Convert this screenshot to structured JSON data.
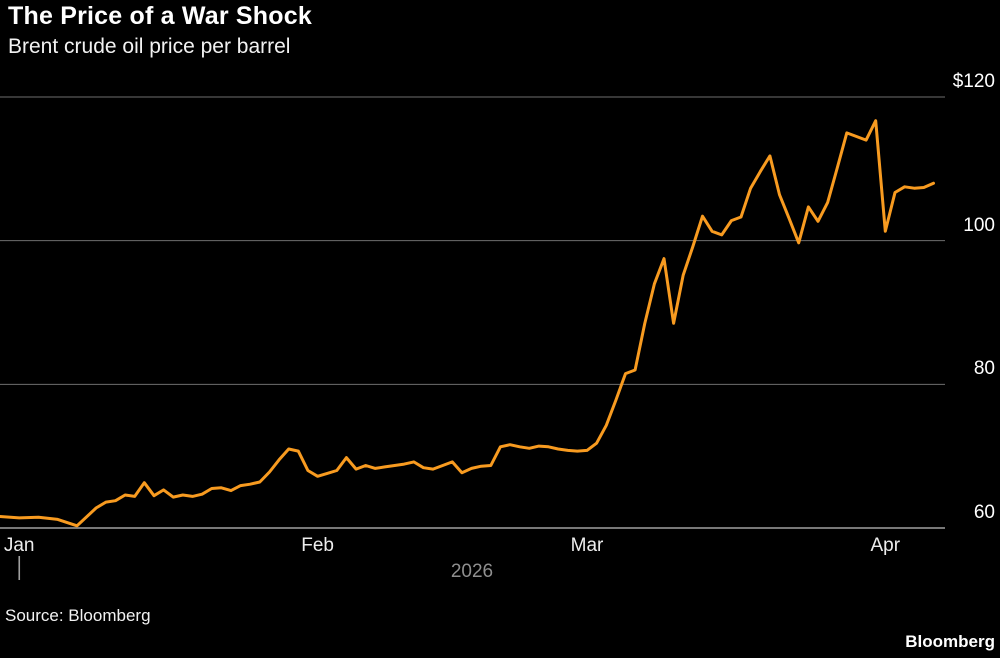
{
  "header": {
    "title": "The Price of a War Shock",
    "subtitle": "Brent crude oil price per barrel"
  },
  "footer": {
    "source": "Source: Bloomberg",
    "brand": "Bloomberg"
  },
  "chart_data": {
    "type": "line",
    "title": "The Price of a War Shock",
    "subtitle": "Brent crude oil price per barrel",
    "background": "#000000",
    "colors": {
      "line": "#F89B20",
      "grid": "#6e6e6e",
      "axis": "#a0a0a0"
    },
    "y_axis": {
      "side": "right",
      "range": [
        60,
        120
      ],
      "ticks": [
        60,
        80,
        100,
        120
      ],
      "tick_labels": [
        "60",
        "80",
        "100",
        "$120"
      ]
    },
    "x_axis": {
      "tick_labels": [
        "Jan",
        "Feb",
        "Mar",
        "Apr"
      ],
      "tick_days": [
        0,
        31,
        59,
        90
      ],
      "year_label": "2026",
      "range_days": [
        -2,
        96.2
      ]
    },
    "series": [
      {
        "name": "Brent crude oil price per barrel",
        "color": "#F89B20",
        "x_days": [
          -2,
          0,
          2,
          4,
          6,
          8,
          9,
          10,
          11,
          12,
          13,
          14,
          15,
          16,
          17,
          18,
          19,
          20,
          21,
          22,
          23,
          24,
          25,
          26,
          27,
          28,
          29,
          30,
          31,
          32,
          33,
          34,
          35,
          36,
          37,
          38,
          39,
          40,
          41,
          42,
          43,
          44,
          45,
          46,
          47,
          48,
          49,
          50,
          51,
          52,
          53,
          54,
          55,
          56,
          57,
          58,
          59,
          60,
          61,
          62,
          63,
          64,
          65,
          66,
          67,
          68,
          69,
          70,
          71,
          72,
          73,
          74,
          75,
          76,
          77,
          78,
          79,
          80,
          81,
          82,
          83,
          84,
          85,
          86,
          87,
          88,
          89,
          90,
          91,
          92,
          93,
          94,
          95
        ],
        "values": [
          61.6,
          61.4,
          61.5,
          61.2,
          60.3,
          62.8,
          63.6,
          63.8,
          64.6,
          64.4,
          66.3,
          64.5,
          65.3,
          64.3,
          64.6,
          64.4,
          64.7,
          65.5,
          65.6,
          65.2,
          65.9,
          66.1,
          66.4,
          67.8,
          69.5,
          71.0,
          70.7,
          68.0,
          67.2,
          67.6,
          68.0,
          69.8,
          68.2,
          68.7,
          68.3,
          68.5,
          68.7,
          68.9,
          69.2,
          68.4,
          68.2,
          68.7,
          69.2,
          67.7,
          68.3,
          68.6,
          68.7,
          71.3,
          71.6,
          71.3,
          71.1,
          71.4,
          71.3,
          71.0,
          70.8,
          70.7,
          70.8,
          71.8,
          74.3,
          77.8,
          81.5,
          82.0,
          88.5,
          94.0,
          97.5,
          88.5,
          95.2,
          99.2,
          103.4,
          101.3,
          100.8,
          102.8,
          103.3,
          107.3,
          109.6,
          111.8,
          106.4,
          103.1,
          99.7,
          104.7,
          102.7,
          105.3,
          110.1,
          115.0,
          114.5,
          114.0,
          116.7,
          101.3,
          106.7,
          107.5,
          107.3,
          107.4,
          108.0
        ]
      }
    ]
  }
}
